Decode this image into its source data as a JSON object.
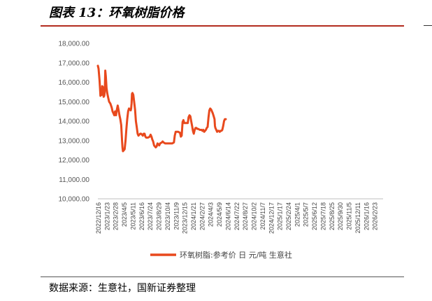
{
  "title": "图表 13：环氧树脂价格",
  "source": "数据来源：生意社，国新证券整理",
  "chart_data": {
    "type": "line",
    "title": "",
    "xlabel": "",
    "ylabel": "",
    "ylim": [
      10000,
      18000
    ],
    "yticks": [
      "18,000.00",
      "17,000.00",
      "16,000.00",
      "15,000.00",
      "14,000.00",
      "13,000.00",
      "12,000.00",
      "11,000.00",
      "10,000.00"
    ],
    "xticks": [
      "2022/12/16",
      "2023/1/23",
      "2023/2/28",
      "2023/4/5",
      "2023/5/11",
      "2023/6/16",
      "2023/7/24",
      "2023/8/29",
      "2023/10/4",
      "2023/11/9",
      "2023/12/15",
      "2024/1/21",
      "2024/2/27",
      "2024/4/3",
      "2024/5/9",
      "2024/6/14",
      "2024/7/22",
      "2024/8/27",
      "2024/10/2",
      "2024/11/7",
      "2024/12/17",
      "2025/1/17",
      "2025/2/24",
      "2025/4/1",
      "2025/5/7",
      "2025/6/12",
      "2025/7/18",
      "2025/8/25",
      "2025/9/30",
      "2025/11/5",
      "2025/12/11",
      "2026/1/16",
      "2026/2/23"
    ],
    "legend": "bottom",
    "grid": false,
    "series": [
      {
        "name": "环氧树脂:参考价 日 元/吨 生意社",
        "color": "#e8491d",
        "points": [
          [
            0,
            16850
          ],
          [
            0.08,
            16700
          ],
          [
            0.2,
            16050
          ],
          [
            0.3,
            15300
          ],
          [
            0.38,
            15450
          ],
          [
            0.46,
            15350
          ],
          [
            0.5,
            15800
          ],
          [
            0.58,
            15750
          ],
          [
            0.66,
            15250
          ],
          [
            0.74,
            15300
          ],
          [
            0.8,
            15500
          ],
          [
            0.86,
            16600
          ],
          [
            0.92,
            16300
          ],
          [
            1.0,
            15700
          ],
          [
            1.1,
            15400
          ],
          [
            1.2,
            15200
          ],
          [
            1.3,
            15000
          ],
          [
            1.45,
            14900
          ],
          [
            1.6,
            14700
          ],
          [
            1.7,
            14500
          ],
          [
            1.8,
            14400
          ],
          [
            1.9,
            14300
          ],
          [
            2.0,
            14500
          ],
          [
            2.1,
            14300
          ],
          [
            2.2,
            14600
          ],
          [
            2.3,
            14800
          ],
          [
            2.4,
            14550
          ],
          [
            2.5,
            14300
          ],
          [
            2.6,
            14100
          ],
          [
            2.7,
            13800
          ],
          [
            2.8,
            13000
          ],
          [
            2.85,
            12650
          ],
          [
            2.9,
            12450
          ],
          [
            3.0,
            12500
          ],
          [
            3.1,
            12550
          ],
          [
            3.2,
            13000
          ],
          [
            3.3,
            13600
          ],
          [
            3.4,
            14100
          ],
          [
            3.5,
            14500
          ],
          [
            3.6,
            14650
          ],
          [
            3.7,
            14600
          ],
          [
            3.8,
            14550
          ],
          [
            3.85,
            14650
          ],
          [
            3.9,
            14900
          ],
          [
            3.95,
            15400
          ],
          [
            4.0,
            15450
          ],
          [
            4.1,
            15350
          ],
          [
            4.2,
            15000
          ],
          [
            4.3,
            14600
          ],
          [
            4.4,
            14000
          ],
          [
            4.5,
            13700
          ],
          [
            4.6,
            13350
          ],
          [
            4.7,
            13250
          ],
          [
            4.8,
            13300
          ],
          [
            4.9,
            13350
          ],
          [
            5.0,
            13350
          ],
          [
            5.1,
            13300
          ],
          [
            5.2,
            13250
          ],
          [
            5.3,
            13350
          ],
          [
            5.4,
            13350
          ],
          [
            5.5,
            13200
          ],
          [
            5.6,
            13150
          ],
          [
            5.8,
            13150
          ],
          [
            6.0,
            13200
          ],
          [
            6.1,
            13300
          ],
          [
            6.2,
            13200
          ],
          [
            6.3,
            13050
          ],
          [
            6.4,
            12950
          ],
          [
            6.5,
            12750
          ],
          [
            6.6,
            12700
          ],
          [
            6.7,
            12650
          ],
          [
            6.8,
            12700
          ],
          [
            6.9,
            12850
          ],
          [
            7.0,
            12800
          ],
          [
            7.1,
            12750
          ],
          [
            7.2,
            12850
          ],
          [
            7.4,
            12900
          ],
          [
            7.5,
            12950
          ],
          [
            7.6,
            12900
          ],
          [
            7.8,
            12850
          ],
          [
            8.0,
            12850
          ],
          [
            8.2,
            12850
          ],
          [
            8.4,
            12850
          ],
          [
            8.6,
            12850
          ],
          [
            8.8,
            12900
          ],
          [
            8.9,
            13250
          ],
          [
            9.0,
            13450
          ],
          [
            9.1,
            13450
          ],
          [
            9.3,
            13450
          ],
          [
            9.5,
            13400
          ],
          [
            9.6,
            13200
          ],
          [
            9.7,
            13250
          ],
          [
            9.8,
            13950
          ],
          [
            9.9,
            14050
          ],
          [
            10.0,
            13900
          ],
          [
            10.2,
            13900
          ],
          [
            10.4,
            13900
          ],
          [
            10.5,
            14200
          ],
          [
            10.6,
            14300
          ],
          [
            10.7,
            14250
          ],
          [
            10.8,
            14000
          ],
          [
            10.9,
            13750
          ],
          [
            11.0,
            13500
          ],
          [
            11.1,
            13350
          ],
          [
            11.2,
            13550
          ],
          [
            11.3,
            13650
          ],
          [
            11.4,
            13650
          ],
          [
            11.5,
            13600
          ],
          [
            11.6,
            13600
          ],
          [
            11.8,
            13550
          ],
          [
            12.0,
            13550
          ],
          [
            12.1,
            13500
          ],
          [
            12.2,
            13550
          ],
          [
            12.3,
            13450
          ],
          [
            12.4,
            13500
          ],
          [
            12.5,
            13550
          ],
          [
            12.6,
            13650
          ],
          [
            12.7,
            13700
          ],
          [
            12.8,
            14200
          ],
          [
            12.9,
            14550
          ],
          [
            13.0,
            14650
          ],
          [
            13.1,
            14600
          ],
          [
            13.2,
            14500
          ],
          [
            13.3,
            14400
          ],
          [
            13.4,
            14250
          ],
          [
            13.5,
            14100
          ],
          [
            13.55,
            13750
          ],
          [
            13.6,
            13650
          ],
          [
            13.7,
            13550
          ],
          [
            13.8,
            13450
          ],
          [
            13.9,
            13500
          ],
          [
            14.0,
            13500
          ],
          [
            14.1,
            13450
          ],
          [
            14.2,
            13500
          ],
          [
            14.3,
            13500
          ],
          [
            14.4,
            13550
          ],
          [
            14.5,
            13750
          ],
          [
            14.6,
            14000
          ],
          [
            14.7,
            14100
          ],
          [
            14.8,
            14100
          ]
        ]
      }
    ]
  }
}
